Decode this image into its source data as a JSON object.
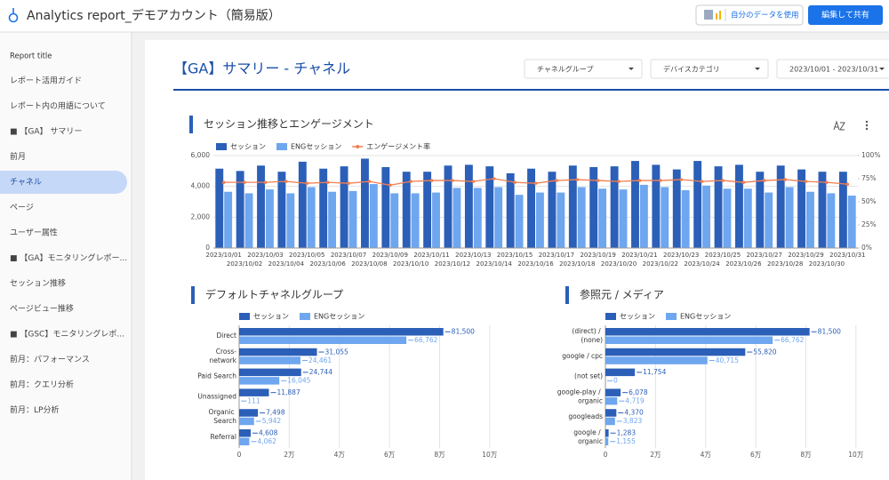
{
  "header": {
    "title": "Analytics report_デモアカウント（簡易版）",
    "buttons": [
      "自分のデータを使用",
      "編集して共有"
    ]
  },
  "sidebar": {
    "heading": "Report title",
    "selected_item": 4,
    "items": [
      "レポート活用ガイド",
      "レポート内の用語について",
      "■ 【GA】 サマリー",
      "前月",
      "チャネル",
      "ページ",
      "ユーザー属性",
      "■ 【GA】モニタリングレポー...",
      "セッション推移",
      "ページビュー推移",
      "■ 【GSC】モニタリングレポ...",
      "前月：パフォーマンス",
      "前月：クエリ分析",
      "前月：LP分析"
    ]
  },
  "page": {
    "title": "【GA】サマリー - チャネル",
    "filters": [
      "チャネルグループ",
      "デバイスカテゴリ",
      "2023/10/01 - 2023/10/31"
    ]
  },
  "chart_data": [
    {
      "type": "bar",
      "title": "セッション推移とエンゲージメント",
      "categories": [
        "2023/10/01",
        "2023/10/02",
        "2023/10/03",
        "2023/10/04",
        "2023/10/05",
        "2023/10/06",
        "2023/10/07",
        "2023/10/08",
        "2023/10/09",
        "2023/10/10",
        "2023/10/11",
        "2023/10/12",
        "2023/10/13",
        "2023/10/14",
        "2023/10/15",
        "2023/10/16",
        "2023/10/17",
        "2023/10/18",
        "2023/10/19",
        "2023/10/20",
        "2023/10/21",
        "2023/10/22",
        "2023/10/23",
        "2023/10/24",
        "2023/10/25",
        "2023/10/26",
        "2023/10/27",
        "2023/10/28",
        "2023/10/29",
        "2023/10/30",
        "2023/10/31"
      ],
      "series": [
        {
          "name": "セッション",
          "color": "#2b5fb8",
          "values": [
            5150,
            5000,
            5350,
            4950,
            5600,
            5150,
            5300,
            5800,
            5250,
            4950,
            4950,
            5350,
            5400,
            5300,
            4850,
            5150,
            4950,
            5350,
            5250,
            5300,
            5650,
            5400,
            5100,
            5650,
            5300,
            5400,
            4950,
            5350,
            5100,
            4950,
            4950
          ]
        },
        {
          "name": "ENGセッション",
          "color": "#6ea6ef",
          "values": [
            3650,
            3550,
            3800,
            3550,
            3950,
            3650,
            3700,
            4150,
            3550,
            3550,
            3600,
            3900,
            3900,
            3950,
            3450,
            3600,
            3600,
            3950,
            3850,
            3800,
            4100,
            3950,
            3750,
            4050,
            3850,
            3850,
            3600,
            3950,
            3650,
            3550,
            3400
          ]
        },
        {
          "name": "エンゲージメント率",
          "color": "#f07f52",
          "type": "line",
          "axis": "y2",
          "values": [
            71,
            71,
            71,
            72,
            70,
            71,
            70,
            72,
            68,
            72,
            73,
            73,
            72,
            75,
            71,
            70,
            73,
            74,
            73,
            72,
            73,
            73,
            74,
            72,
            73,
            71,
            73,
            74,
            72,
            71,
            69
          ]
        }
      ],
      "ylim": [
        0,
        6000
      ],
      "yticks": [
        0,
        {
          "value": 2000,
          "label": "2,000"
        },
        {
          "value": 4000,
          "label": "4,000"
        },
        {
          "value": 6000,
          "label": "6,000"
        }
      ],
      "y2lim": [
        0,
        100
      ],
      "y2ticks": [
        {
          "value": 0,
          "label": "0%"
        },
        {
          "value": 25,
          "label": "25%"
        },
        {
          "value": 50,
          "label": "50%"
        },
        {
          "value": 75,
          "label": "75%"
        },
        {
          "value": 100,
          "label": "100%"
        }
      ],
      "grid": true
    },
    {
      "type": "bar",
      "orientation": "horizontal",
      "title": "デフォルトチャネルグループ",
      "categories": [
        "Direct",
        "Cross-network",
        "Paid Search",
        "Unassigned",
        "Organic Search",
        "Referral"
      ],
      "series": [
        {
          "name": "セッション",
          "color": "#2b5fb8",
          "values": [
            81500,
            31055,
            24744,
            11887,
            7498,
            4608
          ],
          "value_labels": [
            "81,500",
            "31,055",
            "24,744",
            "11,887",
            "7,498",
            "4,608"
          ]
        },
        {
          "name": "ENGセッション",
          "color": "#6ea6ef",
          "values": [
            66762,
            24461,
            16045,
            111,
            5942,
            4062
          ],
          "value_labels": [
            "66,762",
            "24,461",
            "16,045",
            "111",
            "5,942",
            "4,062"
          ]
        }
      ],
      "xlim": [
        0,
        110000
      ],
      "xticks": [
        0,
        {
          "value": 20000,
          "label": "2万"
        },
        {
          "value": 40000,
          "label": "4万"
        },
        {
          "value": 60000,
          "label": "6万"
        },
        {
          "value": 80000,
          "label": "8万"
        },
        {
          "value": 100000,
          "label": "10万"
        }
      ],
      "grid": true
    },
    {
      "type": "bar",
      "orientation": "horizontal",
      "title": "参照元 / メディア",
      "categories": [
        "(direct) / (none)",
        "google / cpc",
        "(not set)",
        "google-play / organic",
        "googleads",
        "google / organic"
      ],
      "series": [
        {
          "name": "セッション",
          "color": "#2b5fb8",
          "values": [
            81500,
            55820,
            11754,
            6078,
            4370,
            1283
          ],
          "value_labels": [
            "81,500",
            "55,820",
            "11,754",
            "6,078",
            "4,370",
            "1,283"
          ]
        },
        {
          "name": "ENGセッション",
          "color": "#6ea6ef",
          "values": [
            66762,
            40715,
            0,
            4719,
            3823,
            1155
          ],
          "value_labels": [
            "66,762",
            "40,715",
            "0",
            "4,719",
            "3,823",
            "1,155"
          ]
        }
      ],
      "xlim": [
        0,
        110000
      ],
      "xticks": [
        0,
        {
          "value": 20000,
          "label": "2万"
        },
        {
          "value": 40000,
          "label": "4万"
        },
        {
          "value": 60000,
          "label": "6万"
        },
        {
          "value": 80000,
          "label": "8万"
        },
        {
          "value": 100000,
          "label": "10万"
        }
      ],
      "grid": true
    }
  ]
}
